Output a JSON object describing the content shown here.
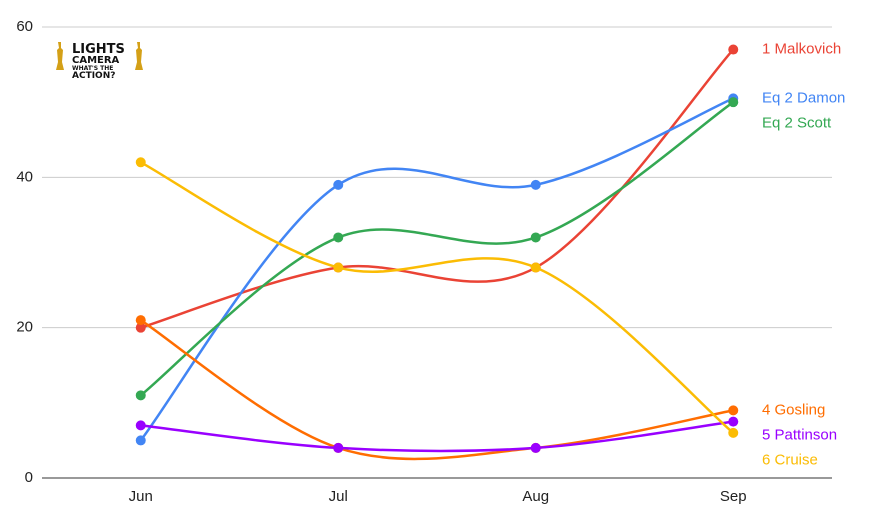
{
  "logo": [
    "LIGHTS",
    "CAMERA",
    "WHAT'S THE",
    "ACTION?"
  ],
  "chart_data": {
    "type": "line",
    "categories": [
      "Jun",
      "Jul",
      "Aug",
      "Sep"
    ],
    "series": [
      {
        "name": "1 Malkovich",
        "color": "#ea4335",
        "values": [
          20,
          28,
          28,
          57
        ]
      },
      {
        "name": "Eq 2 Damon",
        "color": "#4285f4",
        "values": [
          5,
          39,
          39,
          50.5
        ]
      },
      {
        "name": "Eq 2 Scott",
        "color": "#34a853",
        "values": [
          11,
          32,
          32,
          50
        ]
      },
      {
        "name": "4 Gosling",
        "color": "#ff6d01",
        "values": [
          21,
          4,
          4,
          9
        ]
      },
      {
        "name": "5 Pattinson",
        "color": "#9900ff",
        "values": [
          7,
          4,
          4,
          7.5
        ]
      },
      {
        "name": "6 Cruise",
        "color": "#fbbc04",
        "values": [
          42,
          28,
          28,
          6
        ]
      }
    ],
    "ylim": [
      0,
      60
    ],
    "yticks": [
      0,
      20,
      40,
      60
    ],
    "grid": true
  }
}
